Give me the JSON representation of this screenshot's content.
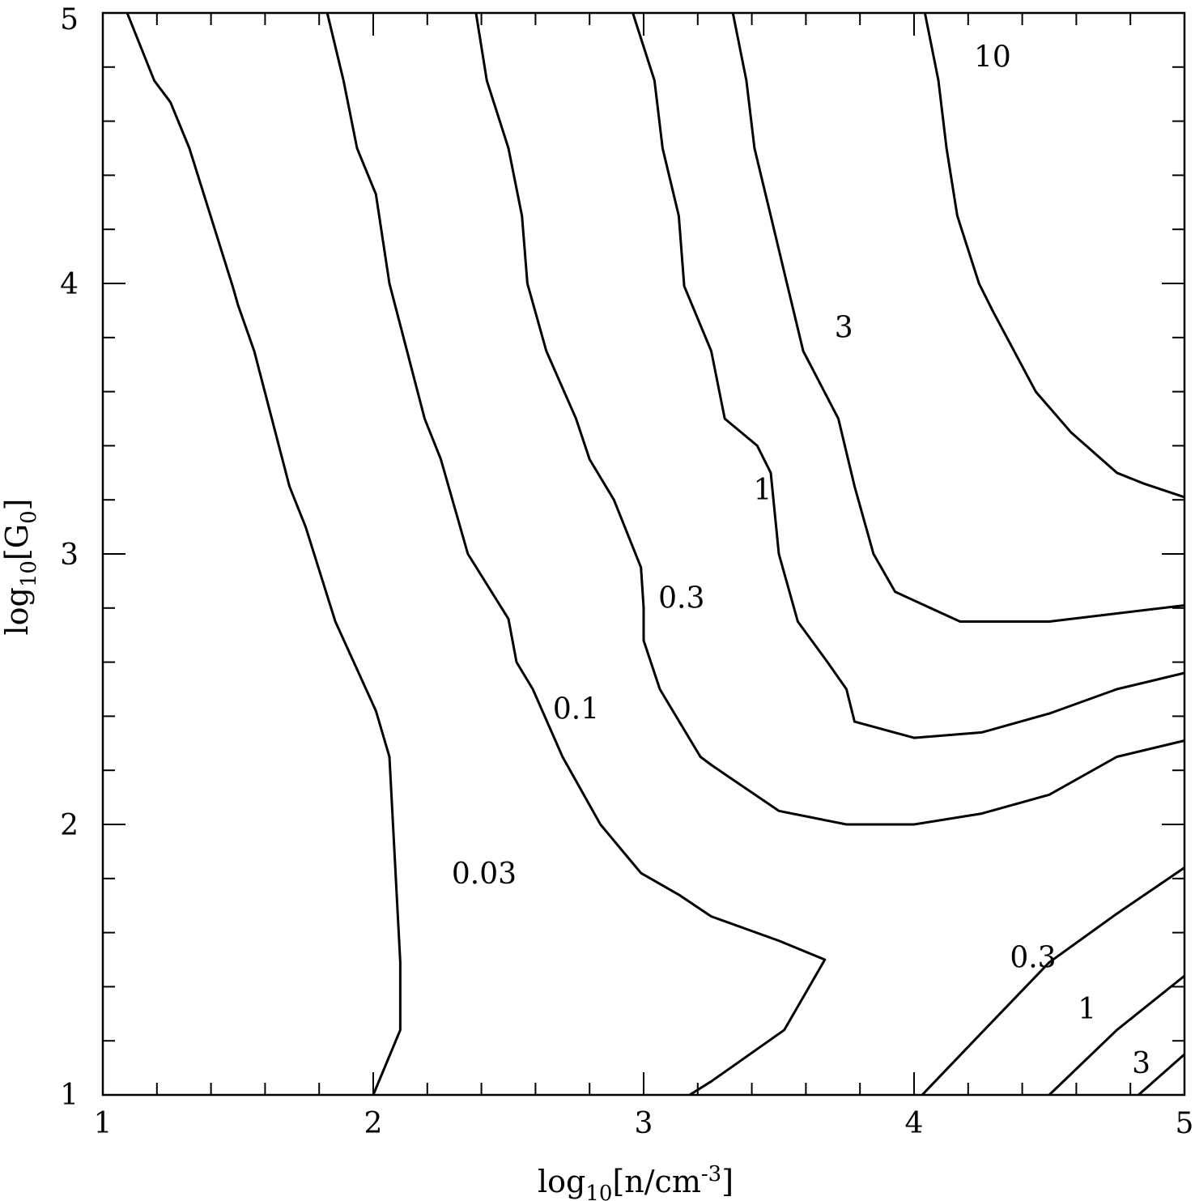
{
  "chart_data": {
    "type": "contour",
    "xlabel": {
      "pre": "log",
      "sub": "10",
      "mid": "[n/cm",
      "sup": "-3",
      "post": "]"
    },
    "ylabel": {
      "pre": "log",
      "sub": "10",
      "mid": "[G",
      "sub2": "0",
      "post": "]"
    },
    "xlim": [
      1,
      5
    ],
    "ylim": [
      1,
      5
    ],
    "xticks": [
      1,
      2,
      3,
      4,
      5
    ],
    "yticks": [
      1,
      2,
      3,
      4,
      5
    ],
    "x_minor_step": 0.2,
    "y_minor_step": 0.2,
    "contours": [
      {
        "level": "0.03",
        "points": [
          [
            1.09,
            5.0
          ],
          [
            1.19,
            4.75
          ],
          [
            1.25,
            4.67
          ],
          [
            1.32,
            4.5
          ],
          [
            1.48,
            3.99
          ],
          [
            1.5,
            3.92
          ],
          [
            1.56,
            3.75
          ],
          [
            1.69,
            3.25
          ],
          [
            1.75,
            3.1
          ],
          [
            1.86,
            2.75
          ],
          [
            2.01,
            2.42
          ],
          [
            2.06,
            2.25
          ],
          [
            2.1,
            1.49
          ],
          [
            2.1,
            1.24
          ],
          [
            2.0,
            1.0
          ]
        ]
      },
      {
        "level": "0.1",
        "points": [
          [
            1.83,
            5.0
          ],
          [
            1.89,
            4.75
          ],
          [
            1.94,
            4.5
          ],
          [
            2.01,
            4.33
          ],
          [
            2.06,
            4.0
          ],
          [
            2.19,
            3.5
          ],
          [
            2.25,
            3.35
          ],
          [
            2.35,
            3.0
          ],
          [
            2.5,
            2.76
          ],
          [
            2.53,
            2.6
          ],
          [
            2.59,
            2.5
          ],
          [
            2.7,
            2.25
          ],
          [
            2.84,
            2.0
          ],
          [
            2.99,
            1.82
          ],
          [
            3.13,
            1.74
          ],
          [
            3.25,
            1.66
          ],
          [
            3.5,
            1.57
          ],
          [
            3.67,
            1.5
          ],
          [
            3.52,
            1.24
          ],
          [
            3.25,
            1.05
          ],
          [
            3.17,
            1.0
          ]
        ]
      },
      {
        "level": "0.3",
        "points": [
          [
            2.38,
            5.0
          ],
          [
            2.42,
            4.75
          ],
          [
            2.5,
            4.5
          ],
          [
            2.55,
            4.25
          ],
          [
            2.57,
            4.0
          ],
          [
            2.64,
            3.75
          ],
          [
            2.75,
            3.5
          ],
          [
            2.8,
            3.35
          ],
          [
            2.89,
            3.2
          ],
          [
            2.99,
            2.95
          ],
          [
            3.0,
            2.8
          ],
          [
            3.0,
            2.68
          ],
          [
            3.06,
            2.5
          ],
          [
            3.21,
            2.25
          ],
          [
            3.25,
            2.22
          ],
          [
            3.5,
            2.05
          ],
          [
            3.75,
            2.0
          ],
          [
            4.0,
            2.0
          ],
          [
            4.25,
            2.04
          ],
          [
            4.5,
            2.11
          ],
          [
            4.75,
            2.25
          ],
          [
            5.0,
            2.31
          ]
        ]
      },
      {
        "level": "1",
        "points": [
          [
            2.96,
            5.0
          ],
          [
            3.04,
            4.75
          ],
          [
            3.07,
            4.5
          ],
          [
            3.13,
            4.25
          ],
          [
            3.15,
            3.99
          ],
          [
            3.25,
            3.75
          ],
          [
            3.3,
            3.5
          ],
          [
            3.42,
            3.4
          ],
          [
            3.47,
            3.3
          ],
          [
            3.5,
            3.0
          ],
          [
            3.57,
            2.75
          ],
          [
            3.68,
            2.6
          ],
          [
            3.75,
            2.5
          ],
          [
            3.78,
            2.38
          ],
          [
            4.0,
            2.32
          ],
          [
            4.25,
            2.34
          ],
          [
            4.5,
            2.41
          ],
          [
            4.75,
            2.5
          ],
          [
            5.0,
            2.56
          ]
        ]
      },
      {
        "level": "3",
        "points": [
          [
            3.33,
            5.0
          ],
          [
            3.38,
            4.75
          ],
          [
            3.41,
            4.5
          ],
          [
            3.47,
            4.25
          ],
          [
            3.53,
            4.0
          ],
          [
            3.59,
            3.75
          ],
          [
            3.72,
            3.5
          ],
          [
            3.78,
            3.25
          ],
          [
            3.85,
            3.0
          ],
          [
            3.93,
            2.86
          ],
          [
            4.17,
            2.75
          ],
          [
            4.5,
            2.75
          ],
          [
            4.75,
            2.78
          ],
          [
            5.0,
            2.81
          ]
        ]
      },
      {
        "level": "10",
        "points": [
          [
            4.04,
            5.0
          ],
          [
            4.09,
            4.75
          ],
          [
            4.12,
            4.5
          ],
          [
            4.16,
            4.25
          ],
          [
            4.24,
            4.0
          ],
          [
            4.29,
            3.9
          ],
          [
            4.45,
            3.6
          ],
          [
            4.58,
            3.45
          ],
          [
            4.75,
            3.3
          ],
          [
            4.85,
            3.26
          ],
          [
            5.0,
            3.21
          ]
        ]
      },
      {
        "level": "0.3",
        "points": [
          [
            4.03,
            1.0
          ],
          [
            4.25,
            1.23
          ],
          [
            4.5,
            1.49
          ],
          [
            4.75,
            1.67
          ],
          [
            5.0,
            1.84
          ]
        ]
      },
      {
        "level": "1",
        "points": [
          [
            4.5,
            1.0
          ],
          [
            4.75,
            1.24
          ],
          [
            5.0,
            1.44
          ]
        ]
      },
      {
        "level": "3",
        "points": [
          [
            4.83,
            1.0
          ],
          [
            5.0,
            1.15
          ]
        ]
      }
    ],
    "labels": [
      {
        "text": "0.03",
        "x": 2.41,
        "y": 1.82
      },
      {
        "text": "0.1",
        "x": 2.75,
        "y": 2.43
      },
      {
        "text": "0.3",
        "x": 3.14,
        "y": 2.84
      },
      {
        "text": "1",
        "x": 3.44,
        "y": 3.24
      },
      {
        "text": "3",
        "x": 3.74,
        "y": 3.84
      },
      {
        "text": "10",
        "x": 4.29,
        "y": 4.84
      },
      {
        "text": "0.3",
        "x": 4.44,
        "y": 1.51
      },
      {
        "text": "1",
        "x": 4.64,
        "y": 1.32
      },
      {
        "text": "3",
        "x": 4.84,
        "y": 1.12
      }
    ]
  }
}
